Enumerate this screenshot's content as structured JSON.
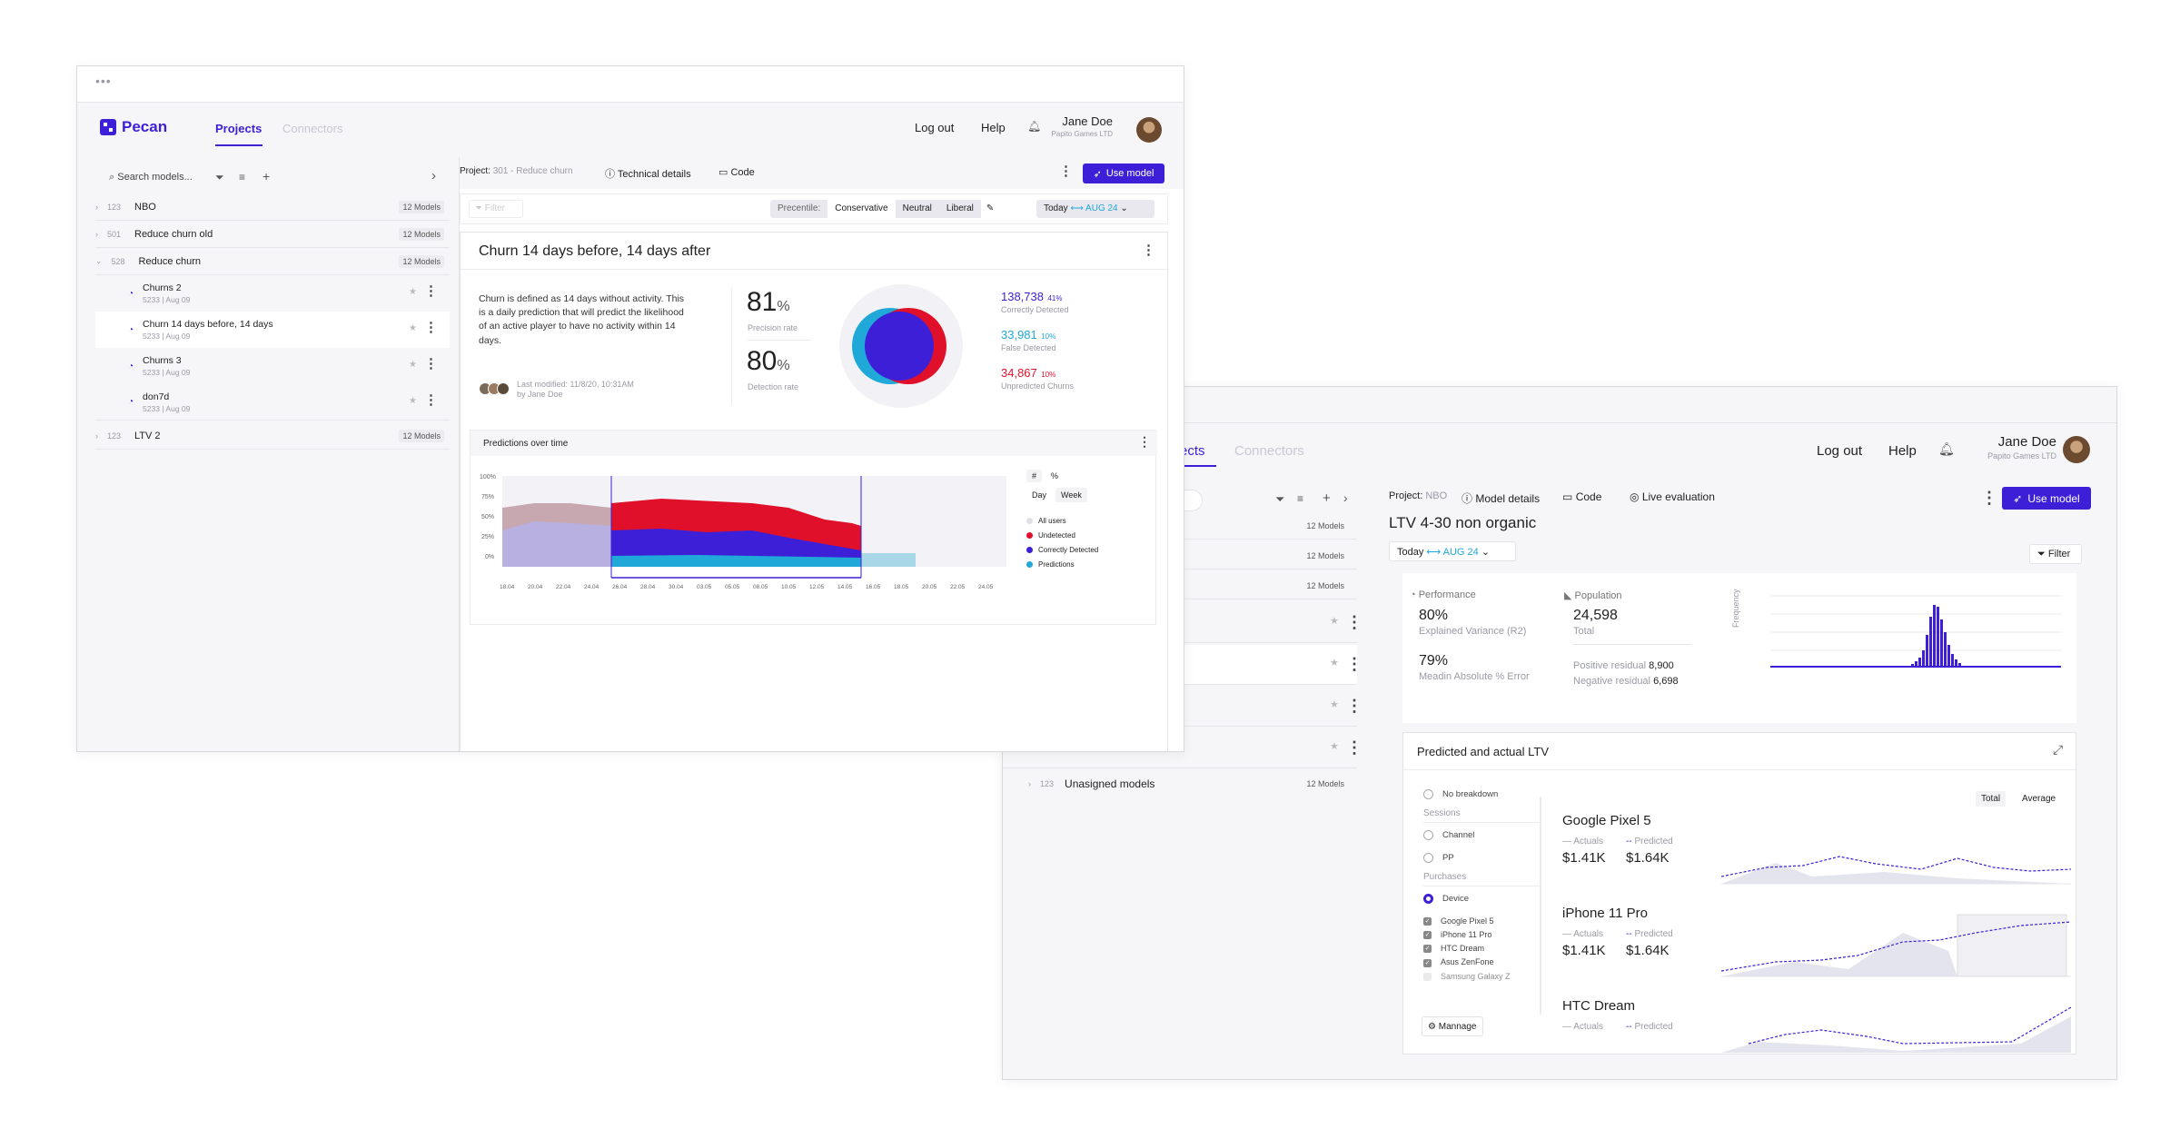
{
  "w1": {
    "brand": "Pecan",
    "nav": {
      "projects": "Projects",
      "connectors": "Connectors"
    },
    "header": {
      "logout": "Log out",
      "help": "Help",
      "user_name": "Jane Doe",
      "user_company": "Papito Games LTD"
    },
    "sidebar": {
      "search_placeholder": "Search models...",
      "items": [
        {
          "id": "123",
          "name": "NBO",
          "count": "12 Models"
        },
        {
          "id": "501",
          "name": "Reduce churn old",
          "count": "12 Models"
        },
        {
          "id": "528",
          "name": "Reduce churn",
          "count": "12 Models"
        },
        {
          "name": "Churns 2",
          "sub": "5233 | Aug 09"
        },
        {
          "name": "Churn 14 days before, 14 days",
          "sub": "5233 | Aug 09"
        },
        {
          "name": "Churns 3",
          "sub": "5233 | Aug 09"
        },
        {
          "name": "don7d",
          "sub": "5233 | Aug 09"
        },
        {
          "id": "123",
          "name": "LTV 2",
          "count": "12 Models"
        }
      ]
    },
    "toolbar": {
      "project_prefix": "Project:",
      "project_name": "301 - Reduce churn",
      "technical": "Technical details",
      "code": "Code",
      "use_model": "Use model"
    },
    "filterbar": {
      "filter": "Filter",
      "percentile": "Precentile:",
      "conservative": "Conservative",
      "neutral": "Neutral",
      "liberal": "Liberal",
      "today": "Today",
      "date": "AUG 24"
    },
    "model": {
      "title": "Churn 14 days before, 14 days after",
      "desc": "Churn is defined as 14 days without activity. This is a daily prediction that will predict the likelihood of an active player to have no activity within 14 days.",
      "modified": "Last modified: 11/8/20, 10:31AM",
      "by": "by Jane Doe",
      "precision": "81",
      "precision_unit": "%",
      "precision_label": "Precision rate",
      "detection": "80",
      "detection_unit": "%",
      "detection_label": "Detection rate",
      "stats": [
        {
          "value": "138,738",
          "pct": "41%",
          "label": "Correctly Detected",
          "color": "#3d1fd8"
        },
        {
          "value": "33,981",
          "pct": "10%",
          "label": "False Detected",
          "color": "#20a8d8"
        },
        {
          "value": "34,867",
          "pct": "10%",
          "label": "Unpredicted Churns",
          "color": "#e0102a"
        }
      ]
    },
    "chart": {
      "title": "Predictions over time",
      "toggles": [
        "#",
        "%"
      ],
      "periods": [
        "Day",
        "Week"
      ],
      "legend": [
        {
          "name": "All users",
          "color": "#e0e0e8"
        },
        {
          "name": "Undetected",
          "color": "#e0102a"
        },
        {
          "name": "Correctly Detected",
          "color": "#3d1fd8"
        },
        {
          "name": "Predictions",
          "color": "#20a8d8"
        }
      ]
    }
  },
  "w2": {
    "nav": {
      "projects": "ects",
      "connectors": "Connectors"
    },
    "header": {
      "logout": "Log out",
      "help": "Help",
      "user_name": "Jane Doe",
      "user_company": "Papito Games LTD"
    },
    "sidebar": {
      "counts": [
        "12 Models",
        "12 Models",
        "12 Models"
      ],
      "unassigned_id": "123",
      "unassigned": "Unasigned models",
      "unassigned_count": "12 Models"
    },
    "toolbar": {
      "project_prefix": "Project:",
      "project_name": "NBO",
      "model_details": "Model details",
      "code": "Code",
      "live": "Live evaluation",
      "use_model": "Use model"
    },
    "title": "LTV 4-30 non organic",
    "today": "Today",
    "date": "AUG 24",
    "filter": "Filter",
    "perf": {
      "performance": "Performance",
      "population": "Population",
      "explained": "80%",
      "explained_label": "Explained Variance (R2)",
      "mape": "79%",
      "mape_label": "Meadin Absolute % Error",
      "population_value": "24,598",
      "population_label": "Total",
      "pos_label": "Positive residual",
      "pos_value": "8,900",
      "neg_label": "Negative residual",
      "neg_value": "6,698",
      "hist_ylabel": "Frequency"
    },
    "ltv": {
      "title": "Predicted and actual LTV",
      "no_breakdown": "No breakdown",
      "sessions": "Sessions",
      "channel": "Channel",
      "pp": "PP",
      "purchases": "Purchases",
      "device": "Device",
      "devices": [
        "Google Pixel 5",
        "iPhone 11 Pro",
        "HTC Dream",
        "Asus ZenFone",
        "Samsung Galaxy Z"
      ],
      "manage": "Mannage",
      "total": "Total",
      "average": "Average",
      "actuals": "Actuals",
      "predicted": "Predicted",
      "panels": [
        {
          "name": "Google Pixel 5",
          "actual": "$1.41K",
          "predicted": "$1.64K"
        },
        {
          "name": "iPhone 11 Pro",
          "actual": "$1.41K",
          "predicted": "$1.64K"
        },
        {
          "name": "HTC Dream",
          "actual": "",
          "predicted": ""
        }
      ]
    }
  }
}
